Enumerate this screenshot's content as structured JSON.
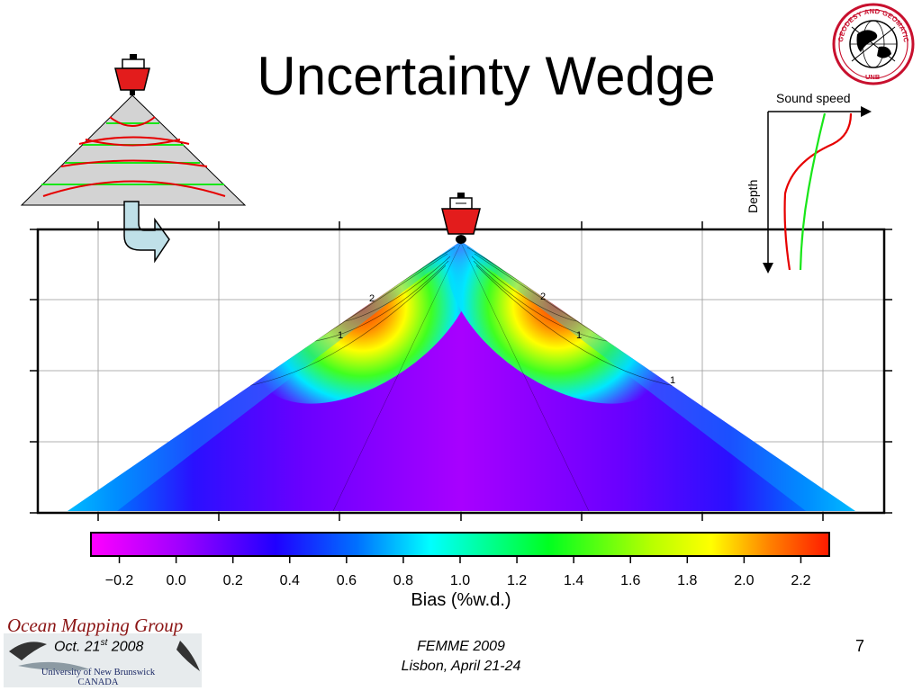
{
  "slide": {
    "title": "Uncertainty Wedge",
    "slide_number": "7"
  },
  "footer": {
    "org_name": "Ocean Mapping Group",
    "university_line1": "University of New Brunswick",
    "university_line2": "CANADA",
    "date_main": "Oct. 21",
    "date_sup": "st",
    "date_year": " 2008",
    "conference_line1": "FEMME 2009",
    "conference_line2": "Lisbon, April 21-24"
  },
  "logo": {
    "top_text": "GEODESY AND GEOMATICS ENGINEERING",
    "bottom_text": "UNB"
  },
  "sound_speed_inset": {
    "x_label": "Sound speed",
    "y_label": "Depth"
  },
  "colorbar": {
    "label": "Bias (%w.d.)",
    "ticks": [
      "−0.2",
      "0.0",
      "0.2",
      "0.4",
      "0.6",
      "0.8",
      "1.0",
      "1.2",
      "1.4",
      "1.6",
      "1.8",
      "2.0",
      "2.2"
    ],
    "min": -0.3,
    "max": 2.3,
    "colors": [
      "#ff00ff",
      "#a000ff",
      "#3000ff",
      "#0060ff",
      "#00ffff",
      "#00ff30",
      "#b0ff00",
      "#ffff00",
      "#ff8000",
      "#ff2000"
    ]
  },
  "contour_labels": [
    "2",
    "1",
    "2",
    "1",
    "1"
  ],
  "colors": {
    "ship_hull": "#e31c1c",
    "wedge_core": "#a000ff",
    "sound_speed_red": "#e60000",
    "sound_speed_green": "#19e619",
    "arrow_fill": "#bfe0e8"
  }
}
